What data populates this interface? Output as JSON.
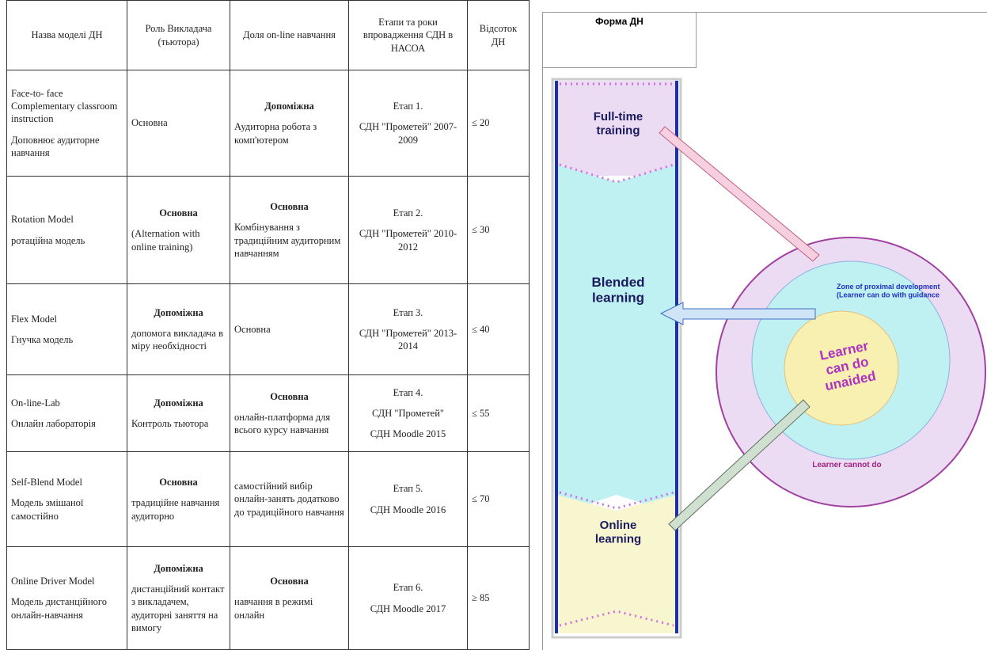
{
  "table": {
    "header": [
      "Назва моделі ДН",
      "Роль Викладача (тьютора)",
      "Доля on-line навчання",
      "Етапи та роки впровадження СДН в НАСОА",
      "Відсоток ДН"
    ],
    "rows": [
      [
        [
          "Face-to- face Complementary classroom instruction",
          "Доповнює аудиторне навчання"
        ],
        [
          "Основна"
        ],
        [
          "Допоміжна",
          "Аудиторна робота з комп'ютером"
        ],
        [
          "Етап 1.",
          "СДН \"Прометей\" 2007-2009"
        ],
        [
          "≤ 20"
        ]
      ],
      [
        [
          "Rotation Model",
          "ротаційна модель"
        ],
        [
          "Основна",
          "(Alternation with online training)"
        ],
        [
          "Основна",
          "Комбінування з традиційним аудиторним навчанням"
        ],
        [
          "Етап 2.",
          "СДН \"Прометей\" 2010-2012"
        ],
        [
          "≤ 30"
        ]
      ],
      [
        [
          "Flex Model",
          "Гнучка модель"
        ],
        [
          "Допоміжна",
          "допомога викладача в міру необхідності"
        ],
        [
          "Основна"
        ],
        [
          "Етап 3.",
          "СДН \"Прометей\" 2013-2014"
        ],
        [
          "≤ 40"
        ]
      ],
      [
        [
          "On-line-Lab",
          "Онлайн лабораторія"
        ],
        [
          "Допоміжна",
          "Контроль тьютора"
        ],
        [
          "Основна",
          "онлайн-платформа для всього курсу навчання"
        ],
        [
          "Етап 4.",
          "СДН \"Прометей\"",
          "СДН Moodle 2015"
        ],
        [
          "≤ 55"
        ]
      ],
      [
        [
          "Self-Blend Model",
          "Модель змішаної самостійно"
        ],
        [
          "Основна",
          "традиційне навчання аудиторно"
        ],
        [
          "самостійний вибір онлайн-занять додатково до традиційного навчання"
        ],
        [
          "Етап 5.",
          "СДН Moodle 2016"
        ],
        [
          "≤ 70"
        ]
      ],
      [
        [
          "Online Driver Model",
          "Модель дистанційного онлайн-навчання"
        ],
        [
          "Допоміжна",
          "дистанційний контакт з викладачем, аудиторні заняття на вимогу"
        ],
        [
          "Основна",
          "навчання в режимі онлайн"
        ],
        [
          "Етап 6.",
          "СДН Moodle 2017"
        ],
        [
          "≥ 85"
        ]
      ]
    ]
  },
  "form_table": {
    "header": "Форма ДН"
  },
  "diagram": {
    "forms": [
      "Full-time training",
      "Blended learning",
      "Online learning"
    ],
    "zone": "Zone of proximal development (Learner can do with guidance",
    "center": "Learner can do unaided",
    "outer": "Learner cannot do"
  }
}
